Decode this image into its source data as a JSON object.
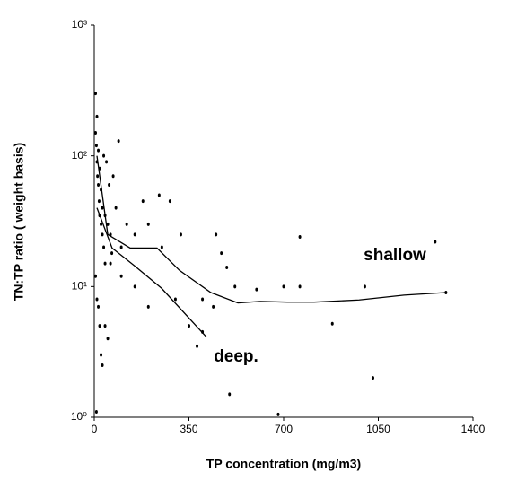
{
  "chart_data": {
    "type": "scatter",
    "x_label": "TP concentration (mg/m3)",
    "y_label": "TN:TP ratio ( weight basis)",
    "annotations": [
      "shallow",
      "deep."
    ],
    "xlim": [
      0,
      1400
    ],
    "xticks": [
      0,
      350,
      700,
      1050,
      1400
    ],
    "ylim": [
      1,
      1000
    ],
    "log_y": true,
    "yticks": [
      {
        "value": 1,
        "label": "10⁰"
      },
      {
        "value": 10,
        "label": "10¹"
      },
      {
        "value": 100,
        "label": "10²"
      },
      {
        "value": 1000,
        "label": "10³"
      }
    ],
    "points": {
      "color": "#000000",
      "x": [
        5,
        8,
        10,
        12,
        15,
        18,
        20,
        25,
        30,
        35,
        40,
        5,
        10,
        15,
        20,
        25,
        30,
        40,
        50,
        60,
        5,
        10,
        15,
        20,
        25,
        30,
        8,
        70,
        80,
        90,
        100,
        120,
        150,
        180,
        200,
        240,
        250,
        280,
        300,
        320,
        350,
        380,
        400,
        450,
        470,
        490,
        500,
        520,
        600,
        680,
        700,
        760,
        760,
        880,
        1000,
        1030,
        1260,
        1300,
        440,
        400,
        200,
        150,
        100,
        60,
        50,
        40,
        55,
        45,
        35,
        65
      ],
      "values": [
        150,
        120,
        90,
        70,
        60,
        45,
        35,
        30,
        25,
        20,
        15,
        300,
        200,
        110,
        80,
        55,
        40,
        35,
        30,
        25,
        12,
        8,
        7,
        5,
        3,
        2.5,
        1.1,
        70,
        40,
        130,
        20,
        30,
        25,
        45,
        30,
        50,
        20,
        45,
        8,
        25,
        5,
        3.5,
        4.5,
        25,
        18,
        14,
        1.5,
        10,
        9.5,
        1.05,
        10,
        24,
        10,
        5.2,
        10,
        2,
        22,
        9,
        7,
        8,
        7,
        10,
        12,
        15,
        4,
        5,
        60,
        90,
        100,
        18
      ]
    },
    "series": [
      {
        "name": "shallow",
        "color": "#000000",
        "x": [
          10,
          50,
          133,
          232,
          315,
          431,
          531,
          614,
          713,
          813,
          979,
          1145,
          1300
        ],
        "values": [
          100,
          25,
          19.7,
          19.7,
          13.3,
          9,
          7.5,
          7.7,
          7.6,
          7.6,
          7.9,
          8.6,
          9
        ]
      },
      {
        "name": "deep",
        "color": "#000000",
        "x": [
          10,
          66,
          149,
          249,
          415
        ],
        "values": [
          40,
          19.7,
          14.4,
          9.7,
          4.1
        ]
      }
    ]
  }
}
